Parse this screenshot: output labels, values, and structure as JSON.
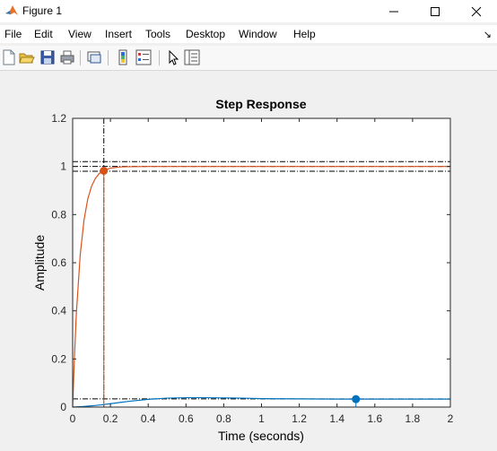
{
  "window": {
    "title": "Figure 1"
  },
  "menu": [
    "File",
    "Edit",
    "View",
    "Insert",
    "Tools",
    "Desktop",
    "Window",
    "Help"
  ],
  "toolbar": {
    "buttons": [
      "new-figure",
      "open-file",
      "save-figure",
      "print-figure",
      "link-plot",
      "insert-colorbar",
      "insert-legend",
      "edit-plot",
      "property-inspector"
    ]
  },
  "colors": {
    "series1": "#d95319",
    "series2": "#0072bd",
    "guides": "#000000"
  },
  "chart_data": {
    "type": "line",
    "title": "Step Response",
    "xlabel": "Time (seconds)",
    "ylabel": "Amplitude",
    "xlim": [
      0,
      2
    ],
    "ylim": [
      0,
      1.2
    ],
    "xticks": [
      "0",
      "0.2",
      "0.4",
      "0.6",
      "0.8",
      "1",
      "1.2",
      "1.4",
      "1.6",
      "1.8",
      "2"
    ],
    "yticks": [
      "0",
      "0.2",
      "0.4",
      "0.6",
      "0.8",
      "1",
      "1.2"
    ],
    "grid": false,
    "series": [
      {
        "x": [
          0,
          0.01,
          0.02,
          0.04,
          0.06,
          0.08,
          0.1,
          0.12,
          0.14,
          0.16,
          0.2,
          0.25,
          0.3,
          0.4,
          0.5,
          0.6,
          0.8,
          1.0,
          1.2,
          1.4,
          1.6,
          1.8,
          2.0
        ],
        "y": [
          0,
          0.222,
          0.395,
          0.633,
          0.777,
          0.865,
          0.918,
          0.95,
          0.97,
          0.982,
          0.993,
          0.998,
          0.999,
          1.0,
          1.0,
          1.0,
          1.0,
          1.0,
          1.0,
          1.0,
          1.0,
          1.0,
          1.0
        ]
      },
      {
        "x": [
          0,
          0.05,
          0.1,
          0.15,
          0.2,
          0.25,
          0.3,
          0.4,
          0.5,
          0.6,
          0.7,
          0.8,
          0.9,
          1.0,
          1.2,
          1.4,
          1.6,
          1.8,
          2.0
        ],
        "y": [
          0,
          0.002,
          0.005,
          0.009,
          0.014,
          0.019,
          0.024,
          0.032,
          0.037,
          0.039,
          0.039,
          0.038,
          0.037,
          0.035,
          0.034,
          0.033,
          0.033,
          0.033,
          0.033
        ]
      }
    ],
    "markers": [
      {
        "series": 0,
        "x": 0.165,
        "y": 0.982
      },
      {
        "series": 1,
        "x": 1.5,
        "y": 0.033
      }
    ],
    "reference_lines": {
      "horizontal": [
        1.02,
        1.0,
        0.98,
        0.034
      ],
      "vertical": [
        0.165
      ]
    }
  }
}
